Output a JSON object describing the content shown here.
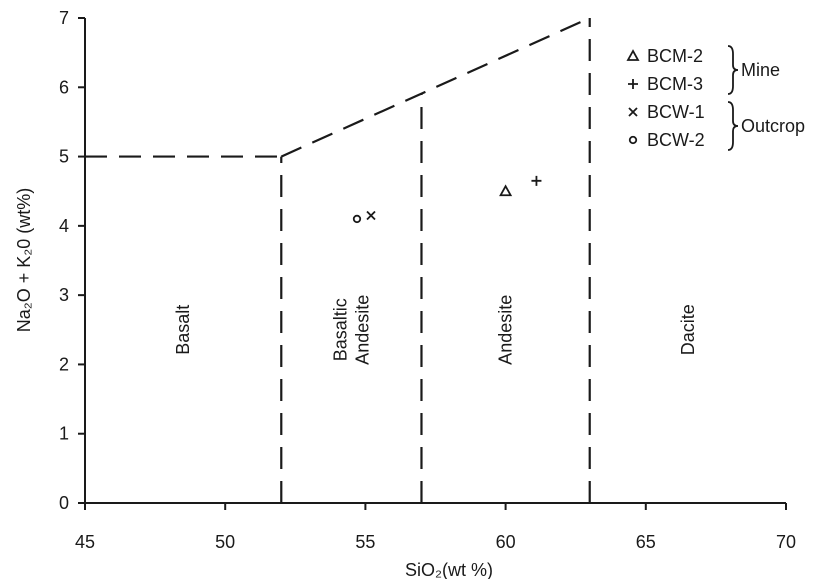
{
  "chart_data": {
    "type": "scatter",
    "title": "",
    "xlabel": "SiO₂(wt %)",
    "ylabel": "Na₂O + K₂0 (wt%)",
    "xlim": [
      45,
      70
    ],
    "ylim": [
      0,
      7
    ],
    "x_ticks": [
      45,
      50,
      55,
      60,
      65,
      70
    ],
    "y_ticks": [
      0,
      1,
      2,
      3,
      4,
      5,
      6,
      7
    ],
    "grid": false,
    "boundaries": [
      {
        "points": [
          [
            45,
            5
          ],
          [
            52,
            5
          ]
        ]
      },
      {
        "points": [
          [
            52,
            5
          ],
          [
            63,
            7
          ]
        ]
      },
      {
        "points": [
          [
            52,
            0
          ],
          [
            52,
            5
          ]
        ]
      },
      {
        "points": [
          [
            57,
            0
          ],
          [
            57,
            5.9
          ]
        ]
      },
      {
        "points": [
          [
            63,
            0
          ],
          [
            63,
            7
          ]
        ]
      }
    ],
    "fields": [
      {
        "lines": [
          "Basalt"
        ],
        "x": 48.5,
        "y": 2.5
      },
      {
        "lines": [
          "Basaltic",
          "Andesite"
        ],
        "x": 54.5,
        "y": 2.5
      },
      {
        "lines": [
          "Andesite"
        ],
        "x": 60,
        "y": 2.5
      },
      {
        "lines": [
          "Dacite"
        ],
        "x": 66.5,
        "y": 2.5
      }
    ],
    "series": [
      {
        "name": "BCM-2",
        "marker": "triangle",
        "points": [
          [
            60.0,
            4.5
          ]
        ]
      },
      {
        "name": "BCM-3",
        "marker": "plus",
        "points": [
          [
            61.1,
            4.65
          ]
        ]
      },
      {
        "name": "BCW-1",
        "marker": "x",
        "points": [
          [
            55.2,
            4.15
          ]
        ]
      },
      {
        "name": "BCW-2",
        "marker": "circle",
        "points": [
          [
            54.7,
            4.1
          ]
        ]
      }
    ],
    "legend": {
      "placement": "top-right",
      "groups": [
        {
          "label": "Mine",
          "members": [
            "BCM-2",
            "BCM-3"
          ]
        },
        {
          "label": "Outcrop",
          "members": [
            "BCW-1",
            "BCW-2"
          ]
        }
      ]
    }
  }
}
